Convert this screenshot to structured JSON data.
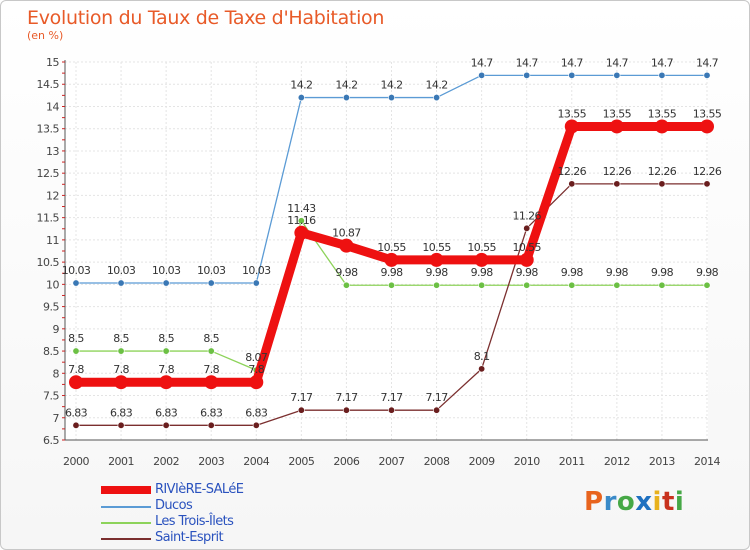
{
  "title": "Evolution du Taux de Taxe d'Habitation",
  "subtitle": "(en %)",
  "logo_text": "Proxiti",
  "logo_colors": [
    "#e8641e",
    "#3a8ac8",
    "#46a846",
    "#1e70c0",
    "#e8b21e",
    "#c8321e",
    "#46a846"
  ],
  "chart_data": {
    "type": "line",
    "title": "Evolution du Taux de Taxe d'Habitation",
    "ylabel": "(en %)",
    "xlabel": "",
    "x": [
      "2000",
      "2001",
      "2002",
      "2003",
      "2004",
      "2005",
      "2006",
      "2007",
      "2008",
      "2009",
      "2010",
      "2011",
      "2012",
      "2013",
      "2014"
    ],
    "ylim": [
      6.5,
      15
    ],
    "yticks": [
      "6.5",
      "7",
      "7.5",
      "8",
      "8.5",
      "9",
      "9.5",
      "10",
      "10.5",
      "11",
      "11.5",
      "12",
      "12.5",
      "13",
      "13.5",
      "14",
      "14.5",
      "15"
    ],
    "grid": true,
    "series": [
      {
        "name": "Ducos",
        "color": "#5b9bd5",
        "marker": "#3a78b5",
        "values": [
          10.03,
          10.03,
          10.03,
          10.03,
          10.03,
          14.2,
          14.2,
          14.2,
          14.2,
          14.7,
          14.7,
          14.7,
          14.7,
          14.7,
          14.7
        ],
        "labels": [
          "10.03",
          "10.03",
          "10.03",
          "10.03",
          "10.03",
          "14.2",
          "14.2",
          "14.2",
          "14.2",
          "14.7",
          "14.7",
          "14.7",
          "14.7",
          "14.7",
          "14.7"
        ]
      },
      {
        "name": "Les Trois-Îlets",
        "color": "#8dd35a",
        "marker": "#6cc044",
        "values": [
          8.5,
          8.5,
          8.5,
          8.5,
          8.07,
          11.43,
          9.98,
          9.98,
          9.98,
          9.98,
          9.98,
          9.98,
          9.98,
          9.98,
          9.98
        ],
        "labels": [
          "8.5",
          "8.5",
          "8.5",
          "8.5",
          "8.07",
          "11.43",
          "9.98",
          "9.98",
          "9.98",
          "9.98",
          "9.98",
          "9.98",
          "9.98",
          "9.98",
          "9.98"
        ]
      },
      {
        "name": "Saint-Esprit",
        "color": "#7b2f2f",
        "marker": "#6a1e1e",
        "values": [
          6.83,
          6.83,
          6.83,
          6.83,
          6.83,
          7.17,
          7.17,
          7.17,
          7.17,
          8.1,
          11.26,
          12.26,
          12.26,
          12.26,
          12.26
        ],
        "labels": [
          "6.83",
          "6.83",
          "6.83",
          "6.83",
          "6.83",
          "7.17",
          "7.17",
          "7.17",
          "7.17",
          "8.1",
          "11.26",
          "12.26",
          "12.26",
          "12.26",
          "12.26"
        ]
      },
      {
        "name": "RIVIèRE-SALéE",
        "color": "#ee1111",
        "marker": "#ee1111",
        "values": [
          7.8,
          7.8,
          7.8,
          7.8,
          7.8,
          11.16,
          10.87,
          10.55,
          10.55,
          10.55,
          10.55,
          13.55,
          13.55,
          13.55,
          13.55
        ],
        "labels": [
          "7.8",
          "7.8",
          "7.8",
          "7.8",
          "7.8",
          "11.16",
          "10.87",
          "10.55",
          "10.55",
          "10.55",
          "10.55",
          "13.55",
          "13.55",
          "13.55",
          "13.55"
        ]
      }
    ],
    "legend": [
      {
        "name": "RIVIèRE-SALéE",
        "color": "#ee1111",
        "thick": true
      },
      {
        "name": "Ducos",
        "color": "#5b9bd5",
        "thick": false
      },
      {
        "name": "Les Trois-Îlets",
        "color": "#8dd35a",
        "thick": false
      },
      {
        "name": "Saint-Esprit",
        "color": "#7b2f2f",
        "thick": false
      }
    ]
  }
}
